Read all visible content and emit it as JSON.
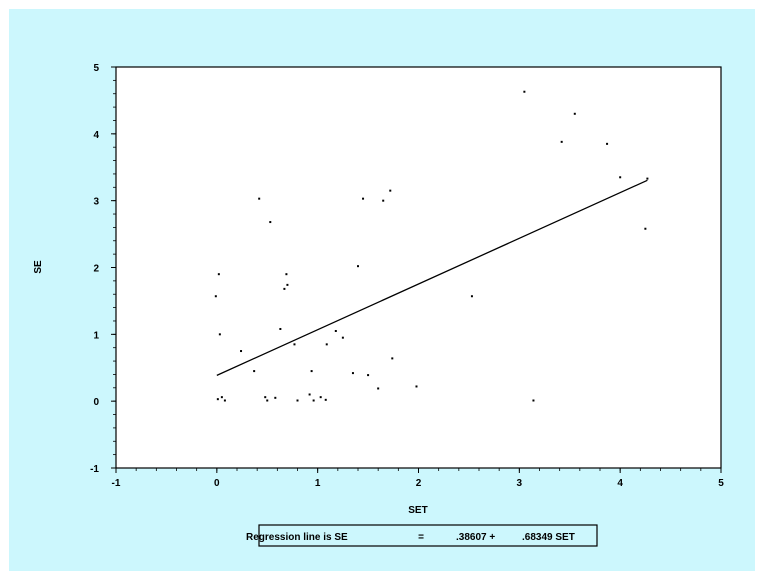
{
  "colors": {
    "background": "#ccf7fd",
    "plot_area": "#ffffff",
    "ink": "#000000"
  },
  "chart_data": {
    "type": "scatter",
    "xlabel": "SET",
    "ylabel": "SE",
    "xlim": [
      -1,
      5
    ],
    "ylim": [
      -1,
      5
    ],
    "x_ticks": [
      "-1",
      "0",
      "1",
      "2",
      "3",
      "4",
      "5"
    ],
    "y_ticks": [
      "-1",
      "0",
      "1",
      "2",
      "3",
      "4",
      "5"
    ],
    "grid": false,
    "points": [
      {
        "x": -0.01,
        "y": 1.57
      },
      {
        "x": 0.01,
        "y": 0.03
      },
      {
        "x": 0.02,
        "y": 1.9
      },
      {
        "x": 0.03,
        "y": 1.0
      },
      {
        "x": 0.05,
        "y": 0.06
      },
      {
        "x": 0.08,
        "y": 0.01
      },
      {
        "x": 0.24,
        "y": 0.75
      },
      {
        "x": 0.37,
        "y": 0.45
      },
      {
        "x": 0.42,
        "y": 3.03
      },
      {
        "x": 0.48,
        "y": 0.06
      },
      {
        "x": 0.5,
        "y": 0.01
      },
      {
        "x": 0.53,
        "y": 2.68
      },
      {
        "x": 0.58,
        "y": 0.05
      },
      {
        "x": 0.63,
        "y": 1.08
      },
      {
        "x": 0.67,
        "y": 1.68
      },
      {
        "x": 0.69,
        "y": 1.9
      },
      {
        "x": 0.7,
        "y": 1.74
      },
      {
        "x": 0.77,
        "y": 0.85
      },
      {
        "x": 0.8,
        "y": 0.01
      },
      {
        "x": 0.92,
        "y": 0.1
      },
      {
        "x": 0.94,
        "y": 0.45
      },
      {
        "x": 0.96,
        "y": 0.01
      },
      {
        "x": 1.03,
        "y": 0.06
      },
      {
        "x": 1.08,
        "y": 0.02
      },
      {
        "x": 1.09,
        "y": 0.85
      },
      {
        "x": 1.18,
        "y": 1.05
      },
      {
        "x": 1.25,
        "y": 0.95
      },
      {
        "x": 1.35,
        "y": 0.42
      },
      {
        "x": 1.4,
        "y": 2.02
      },
      {
        "x": 1.45,
        "y": 3.03
      },
      {
        "x": 1.5,
        "y": 0.39
      },
      {
        "x": 1.6,
        "y": 0.19
      },
      {
        "x": 1.65,
        "y": 3.0
      },
      {
        "x": 1.72,
        "y": 3.15
      },
      {
        "x": 1.74,
        "y": 0.64
      },
      {
        "x": 1.98,
        "y": 0.22
      },
      {
        "x": 2.53,
        "y": 1.57
      },
      {
        "x": 3.05,
        "y": 4.63
      },
      {
        "x": 3.14,
        "y": 0.01
      },
      {
        "x": 3.42,
        "y": 3.88
      },
      {
        "x": 3.55,
        "y": 4.3
      },
      {
        "x": 3.87,
        "y": 3.85
      },
      {
        "x": 4.0,
        "y": 3.35
      },
      {
        "x": 4.25,
        "y": 2.58
      },
      {
        "x": 4.27,
        "y": 3.33
      }
    ],
    "regression_line": {
      "intercept": 0.38607,
      "slope": 0.68349,
      "x_range": [
        0,
        4.27
      ]
    },
    "annotation": {
      "prefix": "Regression line is  SE",
      "equals": "=",
      "intercept_text": ".38607 +",
      "slope_text": ".68349 SET"
    }
  }
}
